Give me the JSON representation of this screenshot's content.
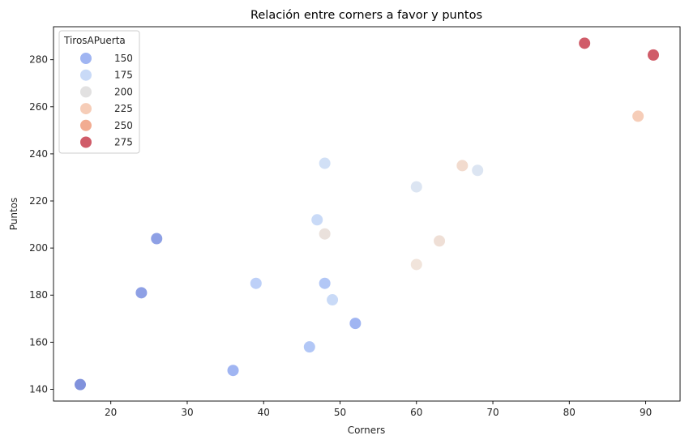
{
  "chart_data": {
    "type": "scatter",
    "title": "Relación entre corners a favor y puntos",
    "xlabel": "Corners",
    "ylabel": "Puntos",
    "xlim": [
      12.5,
      94.5
    ],
    "ylim": [
      135,
      294
    ],
    "x_ticks": [
      20,
      30,
      40,
      50,
      60,
      70,
      80,
      90
    ],
    "y_ticks": [
      140,
      160,
      180,
      200,
      220,
      240,
      260,
      280
    ],
    "grid": false,
    "hue_variable": "TirosAPuerta",
    "legend": {
      "title": "TirosAPuerta",
      "placement": "top-left",
      "entries": [
        {
          "label": "150",
          "color": "#8fa8f0"
        },
        {
          "label": "175",
          "color": "#bfd3f6"
        },
        {
          "label": "200",
          "color": "#dddcdc"
        },
        {
          "label": "225",
          "color": "#f5c4ac"
        },
        {
          "label": "250",
          "color": "#f09d7e"
        },
        {
          "label": "275",
          "color": "#c8404f"
        }
      ]
    },
    "points": [
      {
        "x": 16,
        "y": 142,
        "color": "#6b7fd6"
      },
      {
        "x": 24,
        "y": 181,
        "color": "#7a8fe0"
      },
      {
        "x": 26,
        "y": 204,
        "color": "#7a8fe0"
      },
      {
        "x": 36,
        "y": 148,
        "color": "#8fa8f0"
      },
      {
        "x": 39,
        "y": 185,
        "color": "#b2c8f7"
      },
      {
        "x": 46,
        "y": 158,
        "color": "#a5bdf5"
      },
      {
        "x": 47,
        "y": 212,
        "color": "#bfd3f6"
      },
      {
        "x": 48,
        "y": 236,
        "color": "#c9daf5"
      },
      {
        "x": 48,
        "y": 206,
        "color": "#e6dcd6"
      },
      {
        "x": 48,
        "y": 185,
        "color": "#a5bdf5"
      },
      {
        "x": 49,
        "y": 178,
        "color": "#bfd3f6"
      },
      {
        "x": 52,
        "y": 168,
        "color": "#8fa8f0"
      },
      {
        "x": 60,
        "y": 226,
        "color": "#d6e0f0"
      },
      {
        "x": 60,
        "y": 193,
        "color": "#eedfd5"
      },
      {
        "x": 63,
        "y": 203,
        "color": "#ecd9cf"
      },
      {
        "x": 66,
        "y": 235,
        "color": "#f0d5c6"
      },
      {
        "x": 68,
        "y": 233,
        "color": "#d6e0f0"
      },
      {
        "x": 82,
        "y": 287,
        "color": "#c8404f"
      },
      {
        "x": 89,
        "y": 256,
        "color": "#f5c4ac"
      },
      {
        "x": 91,
        "y": 282,
        "color": "#c8404f"
      }
    ]
  }
}
